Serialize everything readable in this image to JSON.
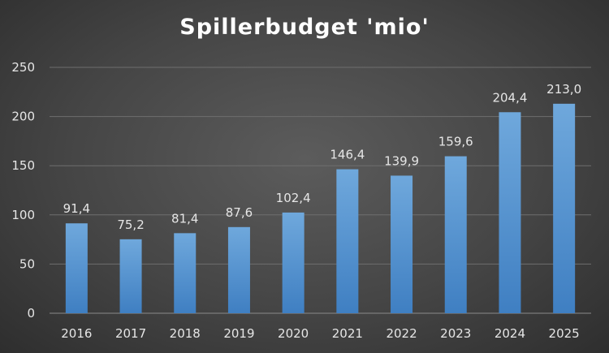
{
  "chart_data": {
    "type": "bar",
    "title": "Spillerbudget 'mio'",
    "categories": [
      "2016",
      "2017",
      "2018",
      "2019",
      "2020",
      "2021",
      "2022",
      "2023",
      "2024",
      "2025"
    ],
    "series": [
      {
        "values": [
          91.4,
          75.2,
          81.4,
          87.6,
          102.4,
          146.4,
          139.9,
          159.6,
          204.4,
          213.0
        ]
      }
    ],
    "data_labels": [
      "91,4",
      "75,2",
      "81,4",
      "87,6",
      "102,4",
      "146,4",
      "139,9",
      "159,6",
      "204,4",
      "213,0"
    ],
    "yticks": [
      0,
      50,
      100,
      150,
      200,
      250
    ],
    "ylim": [
      0,
      250
    ],
    "grid": true,
    "legend": "none",
    "bar_color": "#5b9bd5",
    "grid_color": "#6e6e6e"
  }
}
